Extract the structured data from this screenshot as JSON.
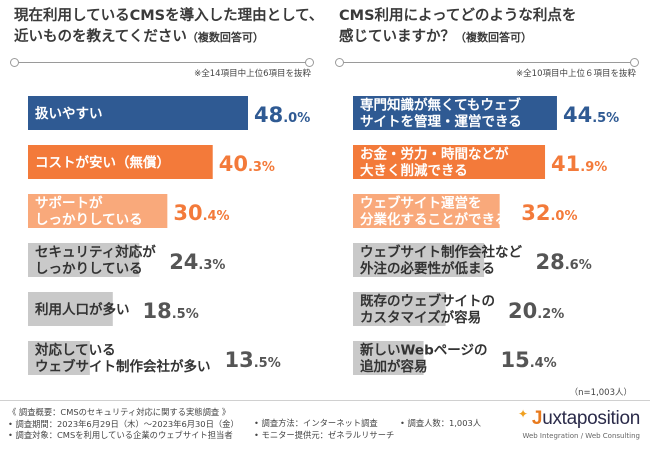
{
  "chart_data": [
    {
      "type": "bar",
      "orientation": "horizontal",
      "title": "現在利用しているCMSを導入した理由として、近いものを教えてください",
      "subtitle": "（複数回答可）",
      "note": "※全14項目中上位6項目を抜粋",
      "unit": "%",
      "xlim": [
        0,
        60
      ],
      "categories": [
        "扱いやすい",
        "コストが安い（無償）",
        "サポートが\nしっかりしている",
        "セキュリティ対応が\nしっかりしている",
        "利用人口が多い",
        "対応している\nウェブサイト制作会社が多い"
      ],
      "values": [
        48.0,
        40.3,
        30.4,
        24.3,
        18.5,
        13.5
      ],
      "value_labels": [
        {
          "int": "48",
          "dec": ".0%"
        },
        {
          "int": "40",
          "dec": ".3%"
        },
        {
          "int": "30",
          "dec": ".4%"
        },
        {
          "int": "24",
          "dec": ".3%"
        },
        {
          "int": "18",
          "dec": ".5%"
        },
        {
          "int": "13",
          "dec": ".5%"
        }
      ],
      "bar_colors": [
        "#2f5a93",
        "#f37a3a",
        "#f9a97b",
        "#c9c9c9",
        "#c9c9c9",
        "#c9c9c9"
      ]
    },
    {
      "type": "bar",
      "orientation": "horizontal",
      "title": "CMS利用によってどのような利点を感じていますか？",
      "subtitle": "（複数回答可）",
      "note": "※全10項目中上位６項目を抜粋",
      "unit": "%",
      "xlim": [
        0,
        60
      ],
      "categories": [
        "専門知識が無くてもウェブ\nサイトを管理・運営できる",
        "お金・労力・時間などが\n大きく削減できる",
        "ウェブサイト運営を\n分業化することができる",
        "ウェブサイト制作会社など\n外注の必要性が低まる",
        "既存のウェブサイトの\nカスタマイズが容易",
        "新しいWebページの\n追加が容易"
      ],
      "values": [
        44.5,
        41.9,
        32.0,
        28.6,
        20.2,
        15.4
      ],
      "value_labels": [
        {
          "int": "44",
          "dec": ".5%"
        },
        {
          "int": "41",
          "dec": ".9%"
        },
        {
          "int": "32",
          "dec": ".0%"
        },
        {
          "int": "28",
          "dec": ".6%"
        },
        {
          "int": "20",
          "dec": ".2%"
        },
        {
          "int": "15",
          "dec": ".4%"
        }
      ],
      "bar_colors": [
        "#2f5a93",
        "#f37a3a",
        "#f9a97b",
        "#c9c9c9",
        "#c9c9c9",
        "#c9c9c9"
      ]
    }
  ],
  "titles": {
    "left_line1": "現在利用しているCMSを導入した理由として、",
    "left_line2": "近いものを教えてください",
    "left_sub": "（複数回答可）",
    "right_line1": "CMS利用によってどのような利点を",
    "right_line2": "感じていますか？",
    "right_sub": "（複数回答可）"
  },
  "sample_size": "（n=1,003人）",
  "footer": {
    "overview": "《 調査概要：CMSのセキュリティ対応に関する実態調査 》",
    "period": "• 調査期間：2023年6月29日（木）〜2023年6月30日（金）",
    "target": "• 調査対象：CMSを利用している企業のウェブサイト担当者",
    "method": "• 調査方法：インターネット調査",
    "provider": "• モニター提供元：ゼネラルリサーチ",
    "count": "• 調査人数：1,003人"
  },
  "logo": {
    "word_j": "J",
    "word_rest": "uxtaposition",
    "tagline": "Web Integration / Web Consulting"
  },
  "colors": {
    "navy": "#2f5a93",
    "orange": "#f37a3a",
    "light_orange": "#f9a97b",
    "gray": "#c9c9c9",
    "val_navy": "#2f5a93",
    "val_orange": "#f37a3a",
    "val_gray": "#555555"
  }
}
